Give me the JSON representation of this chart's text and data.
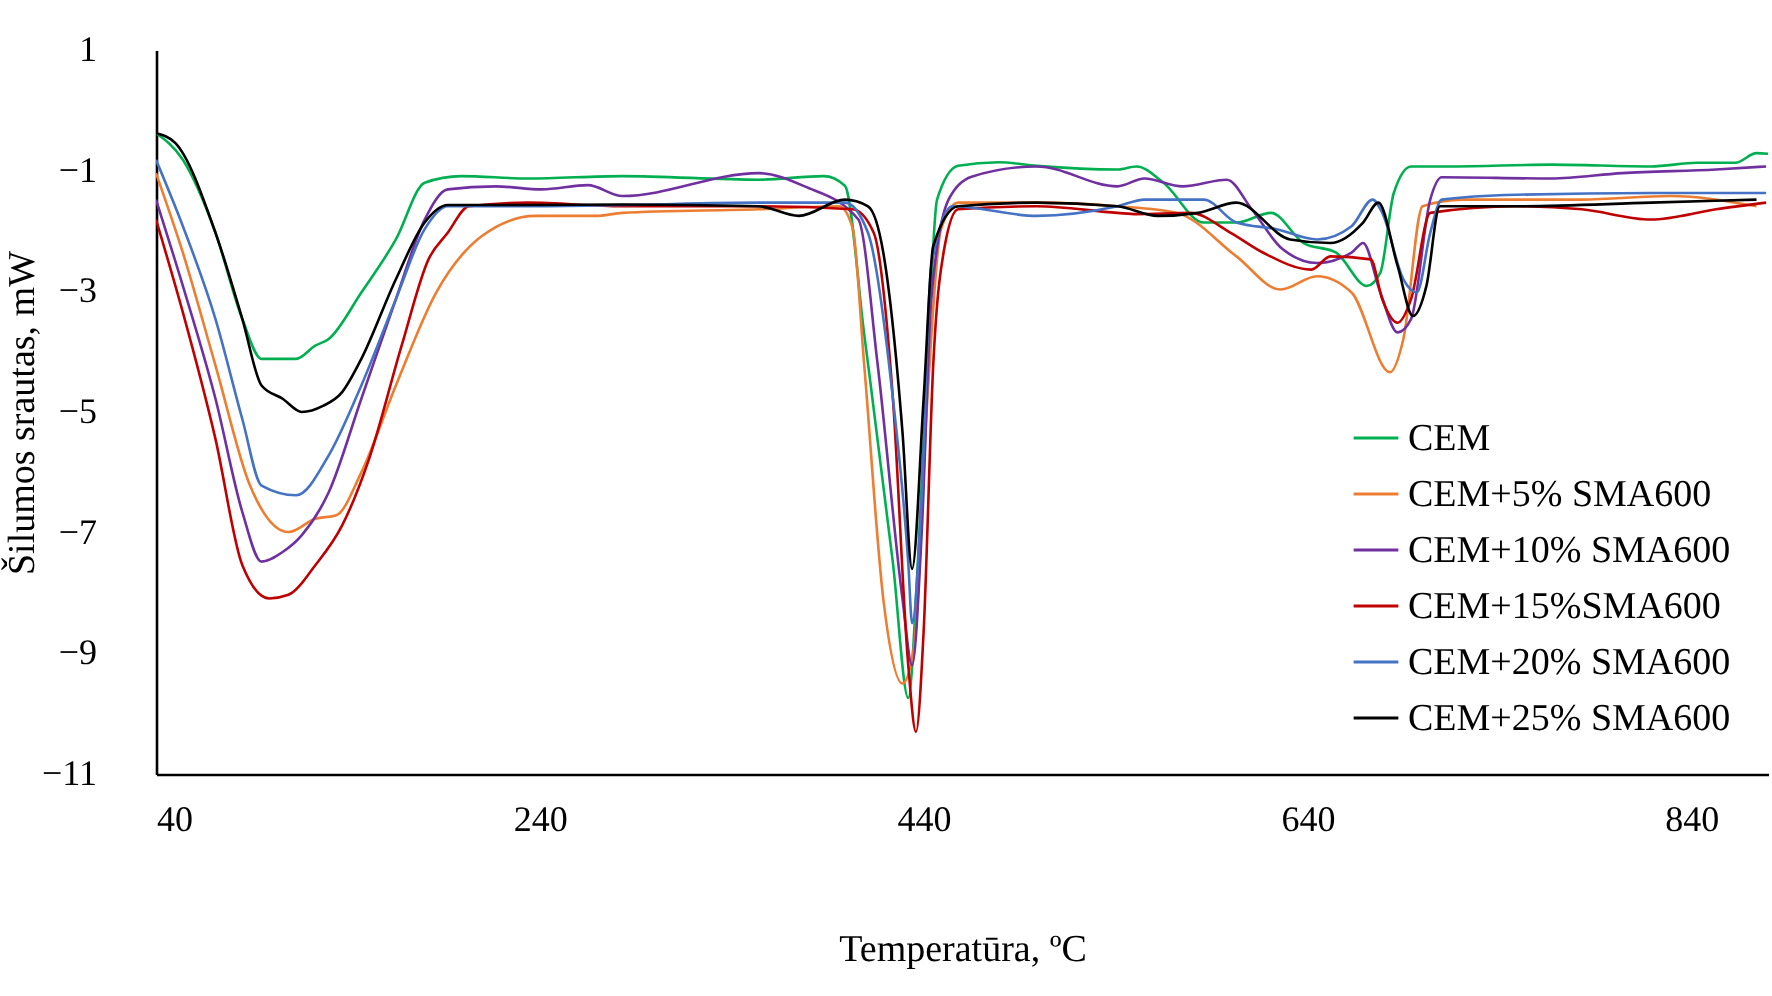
{
  "chart_data": {
    "type": "line",
    "xlabel": "Temperatūra, ºC",
    "ylabel": "Šilumos srautas, mW",
    "xlim": [
      40,
      880
    ],
    "ylim": [
      -11,
      1
    ],
    "xticks": [
      40,
      240,
      440,
      640,
      840
    ],
    "yticks": [
      -11,
      -9,
      -7,
      -5,
      -3,
      -1,
      1
    ],
    "legend": "bottom right",
    "series": [
      {
        "name": "CEM",
        "color": "#00b050",
        "x": [
          40,
          54,
          71,
          85,
          95,
          113,
          123,
          130,
          147,
          165,
          180,
          199,
          234,
          283,
          354,
          388,
          399,
          409,
          424,
          432,
          437,
          442,
          447,
          458,
          479,
          499,
          541,
          551,
          565,
          586,
          603,
          621,
          638,
          655,
          671,
          678,
          685,
          694,
          715,
          767,
          819,
          843,
          863,
          874,
          880
        ],
        "values": [
          -0.38,
          -0.82,
          -2.03,
          -3.46,
          -4.12,
          -4.12,
          -3.9,
          -3.79,
          -3.02,
          -2.14,
          -1.2,
          -1.09,
          -1.13,
          -1.09,
          -1.15,
          -1.09,
          -1.25,
          -3.7,
          -7.5,
          -9.74,
          -7.5,
          -4.2,
          -1.48,
          -0.92,
          -0.86,
          -0.92,
          -0.98,
          -0.93,
          -1.2,
          -1.86,
          -1.86,
          -1.7,
          -2.2,
          -2.36,
          -2.91,
          -2.69,
          -1.37,
          -0.93,
          -0.93,
          -0.9,
          -0.93,
          -0.87,
          -0.87,
          -0.71,
          -0.72
        ]
      },
      {
        "name": "CEM+5% SMA600",
        "color": "#ed7d31",
        "x": [
          40,
          54,
          71,
          89,
          109,
          123,
          134,
          147,
          165,
          186,
          210,
          238,
          269,
          283,
          354,
          396,
          403,
          409,
          419,
          429,
          435,
          442,
          449,
          458,
          499,
          541,
          572,
          603,
          626,
          645,
          663,
          683,
          690,
          700,
          721,
          783,
          829,
          874
        ],
        "values": [
          -1.04,
          -2.36,
          -4.23,
          -6.22,
          -6.99,
          -6.77,
          -6.71,
          -6.0,
          -4.56,
          -3.02,
          -2.08,
          -1.75,
          -1.75,
          -1.7,
          -1.64,
          -1.59,
          -1.95,
          -4.2,
          -8.1,
          -9.5,
          -8.9,
          -4.76,
          -1.98,
          -1.53,
          -1.53,
          -1.59,
          -1.7,
          -2.42,
          -2.97,
          -2.75,
          -3.02,
          -4.34,
          -3.79,
          -1.59,
          -1.48,
          -1.48,
          -1.42,
          -1.59
        ]
      },
      {
        "name": "CEM+10% SMA600",
        "color": "#7030a0",
        "x": [
          40,
          54,
          71,
          85,
          95,
          106,
          116,
          130,
          147,
          165,
          180,
          192,
          217,
          241,
          265,
          283,
          354,
          378,
          406,
          416,
          429,
          434,
          439,
          444,
          453,
          465,
          499,
          541,
          555,
          575,
          598,
          611,
          627,
          645,
          663,
          669,
          678,
          687,
          694,
          704,
          710,
          767,
          804,
          853,
          879
        ],
        "values": [
          -1.48,
          -2.91,
          -4.78,
          -6.66,
          -7.48,
          -7.32,
          -7.04,
          -6.33,
          -4.78,
          -3.13,
          -1.81,
          -1.31,
          -1.26,
          -1.31,
          -1.24,
          -1.42,
          -1.04,
          -1.26,
          -1.81,
          -4.2,
          -8.1,
          -9.2,
          -7.0,
          -3.13,
          -1.48,
          -1.1,
          -0.93,
          -1.26,
          -1.13,
          -1.26,
          -1.15,
          -1.64,
          -2.3,
          -2.53,
          -2.36,
          -2.2,
          -3.02,
          -3.68,
          -3.46,
          -1.48,
          -1.11,
          -1.13,
          -1.04,
          -0.98,
          -0.93
        ]
      },
      {
        "name": "CEM+15%SMA600",
        "color": "#c00000",
        "x": [
          40,
          54,
          71,
          85,
          99,
          109,
          123,
          137,
          151,
          168,
          182,
          192,
          203,
          234,
          283,
          354,
          403,
          414,
          424,
          432,
          436,
          440,
          445,
          451,
          458,
          499,
          541,
          551,
          579,
          600,
          617,
          642,
          652,
          673,
          679,
          687,
          694,
          704,
          749,
          783,
          819,
          853,
          879
        ],
        "values": [
          -1.81,
          -3.35,
          -5.45,
          -7.54,
          -8.09,
          -8.03,
          -7.54,
          -6.88,
          -5.78,
          -3.9,
          -2.47,
          -2.03,
          -1.59,
          -1.53,
          -1.59,
          -1.59,
          -1.64,
          -2.03,
          -4.78,
          -9.2,
          -10.3,
          -8.64,
          -4.23,
          -2.25,
          -1.64,
          -1.59,
          -1.7,
          -1.72,
          -1.7,
          -2.03,
          -2.36,
          -2.64,
          -2.42,
          -2.47,
          -3.13,
          -3.52,
          -3.13,
          -1.7,
          -1.59,
          -1.64,
          -1.81,
          -1.64,
          -1.53
        ]
      },
      {
        "name": "CEM+20% SMA600",
        "color": "#4472c4",
        "x": [
          40,
          54,
          71,
          85,
          95,
          113,
          130,
          147,
          165,
          180,
          192,
          234,
          283,
          354,
          399,
          411,
          424,
          432,
          434,
          439,
          444,
          455,
          499,
          541,
          555,
          586,
          603,
          624,
          645,
          663,
          674,
          679,
          690,
          697,
          704,
          710,
          749,
          819,
          879
        ],
        "values": [
          -0.82,
          -1.92,
          -3.46,
          -5.12,
          -6.22,
          -6.38,
          -5.72,
          -4.56,
          -3.13,
          -1.97,
          -1.59,
          -1.59,
          -1.57,
          -1.53,
          -1.53,
          -2.03,
          -4.78,
          -7.5,
          -8.5,
          -6.4,
          -2.58,
          -1.59,
          -1.75,
          -1.59,
          -1.48,
          -1.48,
          -1.86,
          -1.97,
          -2.14,
          -1.92,
          -1.48,
          -1.7,
          -2.8,
          -3.02,
          -2.03,
          -1.48,
          -1.4,
          -1.37,
          -1.37
        ]
      },
      {
        "name": "CEM+25% SMA600",
        "color": "#000000",
        "x": [
          40,
          50,
          71,
          85,
          95,
          106,
          116,
          127,
          137,
          147,
          165,
          180,
          192,
          234,
          283,
          354,
          375,
          399,
          411,
          419,
          429,
          434,
          440,
          445,
          458,
          499,
          541,
          562,
          583,
          603,
          631,
          652,
          669,
          677,
          687,
          695,
          702,
          709,
          749,
          819,
          874
        ],
        "values": [
          -0.38,
          -0.54,
          -2.03,
          -3.46,
          -4.56,
          -4.78,
          -5.0,
          -4.9,
          -4.67,
          -4.12,
          -2.8,
          -1.86,
          -1.57,
          -1.57,
          -1.56,
          -1.59,
          -1.75,
          -1.48,
          -1.59,
          -2.36,
          -5.34,
          -7.6,
          -4.78,
          -2.25,
          -1.59,
          -1.53,
          -1.59,
          -1.75,
          -1.7,
          -1.53,
          -2.14,
          -2.2,
          -1.86,
          -1.53,
          -2.58,
          -3.41,
          -2.91,
          -1.59,
          -1.59,
          -1.53,
          -1.48
        ]
      }
    ]
  }
}
